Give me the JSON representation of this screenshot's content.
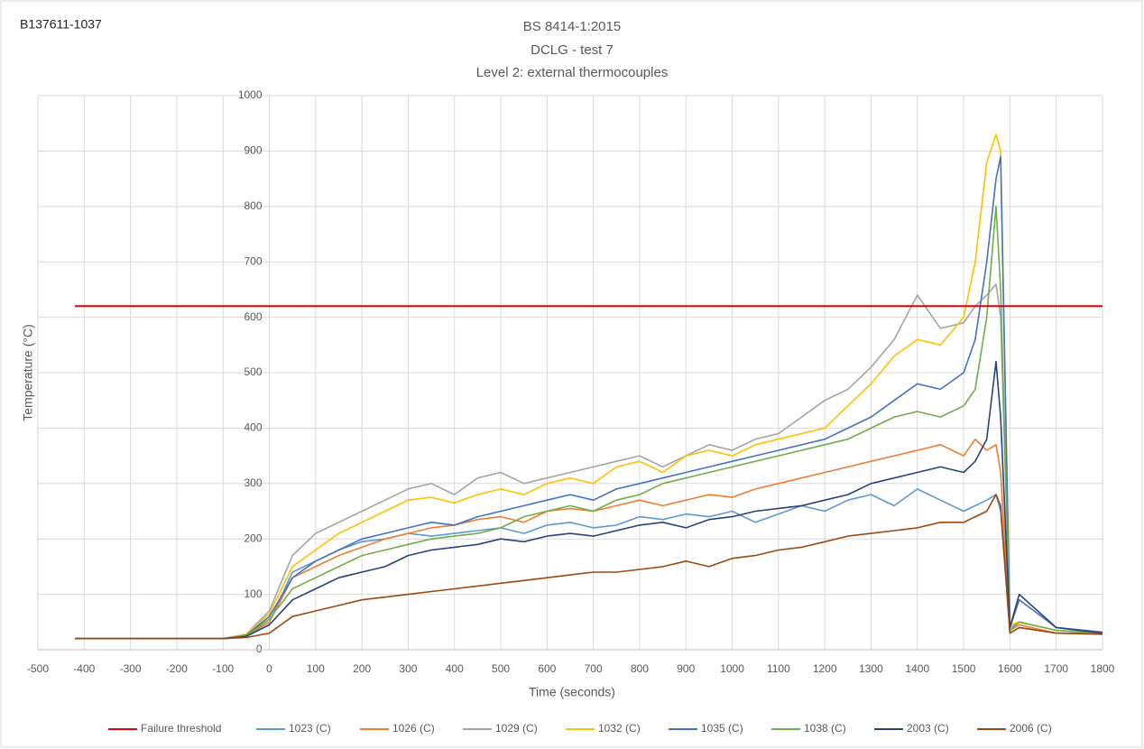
{
  "chart_data": {
    "type": "line",
    "annotation": "B137611-1037",
    "title": "BS 8414-1:2015",
    "subtitle": [
      "DCLG - test 7",
      "Level 2: external thermocouples"
    ],
    "xlabel": "Time (seconds)",
    "ylabel": "Temperature (°C)",
    "x": [
      -420,
      -100,
      -50,
      0,
      50,
      100,
      150,
      200,
      250,
      300,
      350,
      400,
      450,
      500,
      550,
      600,
      650,
      700,
      750,
      800,
      850,
      900,
      950,
      1000,
      1050,
      1100,
      1150,
      1200,
      1250,
      1300,
      1350,
      1400,
      1450,
      1500,
      1525,
      1550,
      1570,
      1580,
      1600,
      1620,
      1700,
      1800
    ],
    "series": [
      {
        "name": "Failure threshold",
        "color": "#e00000",
        "x": [
          -420,
          1800
        ],
        "values": [
          620,
          620
        ]
      },
      {
        "name": "1023 (C)",
        "color": "#5b9bd5",
        "values": [
          20,
          20,
          25,
          50,
          140,
          160,
          180,
          195,
          200,
          210,
          205,
          210,
          215,
          220,
          210,
          225,
          230,
          220,
          225,
          240,
          235,
          245,
          240,
          250,
          230,
          245,
          260,
          250,
          270,
          280,
          260,
          290,
          270,
          250,
          260,
          270,
          280,
          250,
          30,
          40,
          30,
          30
        ]
      },
      {
        "name": "1026 (C)",
        "color": "#ed7d31",
        "values": [
          20,
          20,
          25,
          50,
          130,
          150,
          170,
          185,
          200,
          210,
          220,
          225,
          235,
          240,
          230,
          250,
          255,
          250,
          260,
          270,
          260,
          270,
          280,
          275,
          290,
          300,
          310,
          320,
          330,
          340,
          350,
          360,
          370,
          350,
          380,
          360,
          370,
          320,
          35,
          45,
          30,
          28
        ]
      },
      {
        "name": "1029 (C)",
        "color": "#a5a5a5",
        "values": [
          20,
          20,
          28,
          70,
          170,
          210,
          230,
          250,
          270,
          290,
          300,
          280,
          310,
          320,
          300,
          310,
          320,
          330,
          340,
          350,
          330,
          350,
          370,
          360,
          380,
          390,
          420,
          450,
          470,
          510,
          560,
          640,
          580,
          590,
          620,
          640,
          660,
          600,
          40,
          50,
          35,
          30
        ]
      },
      {
        "name": "1032 (C)",
        "color": "#ffc000",
        "values": [
          20,
          20,
          28,
          65,
          150,
          180,
          210,
          230,
          250,
          270,
          275,
          265,
          280,
          290,
          280,
          300,
          310,
          300,
          330,
          340,
          320,
          350,
          360,
          350,
          370,
          380,
          390,
          400,
          440,
          480,
          530,
          560,
          550,
          600,
          700,
          880,
          930,
          900,
          45,
          50,
          35,
          30
        ]
      },
      {
        "name": "1035 (C)",
        "color": "#4472c4",
        "values": [
          20,
          20,
          26,
          60,
          130,
          160,
          180,
          200,
          210,
          220,
          230,
          225,
          240,
          250,
          260,
          270,
          280,
          270,
          290,
          300,
          310,
          320,
          330,
          340,
          350,
          360,
          370,
          380,
          400,
          420,
          450,
          480,
          470,
          500,
          560,
          700,
          850,
          890,
          40,
          90,
          40,
          32
        ]
      },
      {
        "name": "1038 (C)",
        "color": "#70ad47",
        "values": [
          20,
          20,
          25,
          55,
          110,
          130,
          150,
          170,
          180,
          190,
          200,
          205,
          210,
          220,
          240,
          250,
          260,
          250,
          270,
          280,
          300,
          310,
          320,
          330,
          340,
          350,
          360,
          370,
          380,
          400,
          420,
          430,
          420,
          440,
          470,
          600,
          800,
          650,
          35,
          50,
          35,
          30
        ]
      },
      {
        "name": "2003 (C)",
        "color": "#264478",
        "values": [
          20,
          20,
          24,
          45,
          90,
          110,
          130,
          140,
          150,
          170,
          180,
          185,
          190,
          200,
          195,
          205,
          210,
          205,
          215,
          225,
          230,
          220,
          235,
          240,
          250,
          255,
          260,
          270,
          280,
          300,
          310,
          320,
          330,
          320,
          340,
          380,
          520,
          420,
          40,
          100,
          40,
          30
        ]
      },
      {
        "name": "2006 (C)",
        "color": "#9e480e",
        "values": [
          20,
          20,
          22,
          30,
          60,
          70,
          80,
          90,
          95,
          100,
          105,
          110,
          115,
          120,
          125,
          130,
          135,
          140,
          140,
          145,
          150,
          160,
          150,
          165,
          170,
          180,
          185,
          195,
          205,
          210,
          215,
          220,
          230,
          230,
          240,
          250,
          280,
          260,
          30,
          40,
          30,
          28
        ]
      }
    ],
    "xlim": [
      -500,
      1800
    ],
    "xticks": [
      -500,
      -400,
      -300,
      -200,
      -100,
      0,
      100,
      200,
      300,
      400,
      500,
      600,
      700,
      800,
      900,
      1000,
      1100,
      1200,
      1300,
      1400,
      1500,
      1600,
      1700,
      1800
    ],
    "ylim": [
      0,
      1000
    ],
    "yticks": [
      0,
      100,
      200,
      300,
      400,
      500,
      600,
      700,
      800,
      900,
      1000
    ],
    "grid": true,
    "legend": "bottom"
  }
}
